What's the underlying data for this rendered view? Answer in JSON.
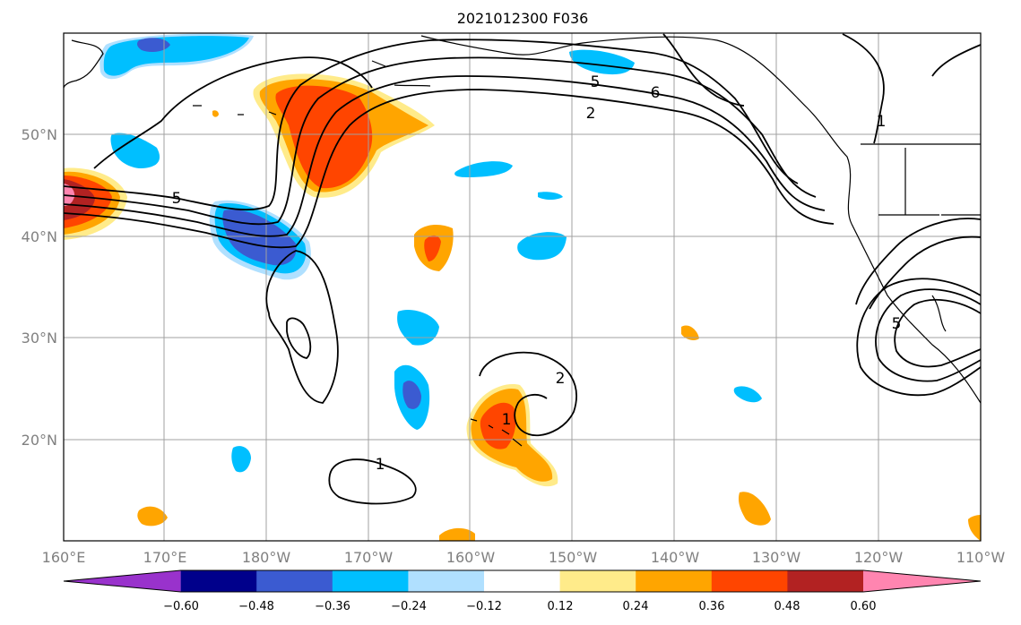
{
  "title": "2021012300 F036",
  "map": {
    "lat_labels": [
      "50°N",
      "40°N",
      "30°N",
      "20°N"
    ],
    "lon_labels": [
      "160°E",
      "170°E",
      "180°W",
      "170°W",
      "160°W",
      "150°W",
      "140°W",
      "130°W",
      "120°W",
      "110°W"
    ],
    "extent": {
      "lon_min": 160,
      "lon_max": 250,
      "lat_min": 10,
      "lat_max": 60
    },
    "grid": true,
    "contour_labels": [
      "5",
      "2",
      "5",
      "6",
      "1",
      "2",
      "1",
      "1",
      "5"
    ]
  },
  "colorbar": {
    "tick_labels": [
      "−0.60",
      "−0.48",
      "−0.36",
      "−0.24",
      "−0.12",
      "0.12",
      "0.24",
      "0.36",
      "0.48",
      "0.60"
    ],
    "colors": [
      "#9932cc",
      "#00008b",
      "#3b5bd1",
      "#00bfff",
      "#b0e0ff",
      "#ffffff",
      "#ffeb8a",
      "#ffa500",
      "#ff4500",
      "#b22222",
      "#ff85b0"
    ]
  }
}
